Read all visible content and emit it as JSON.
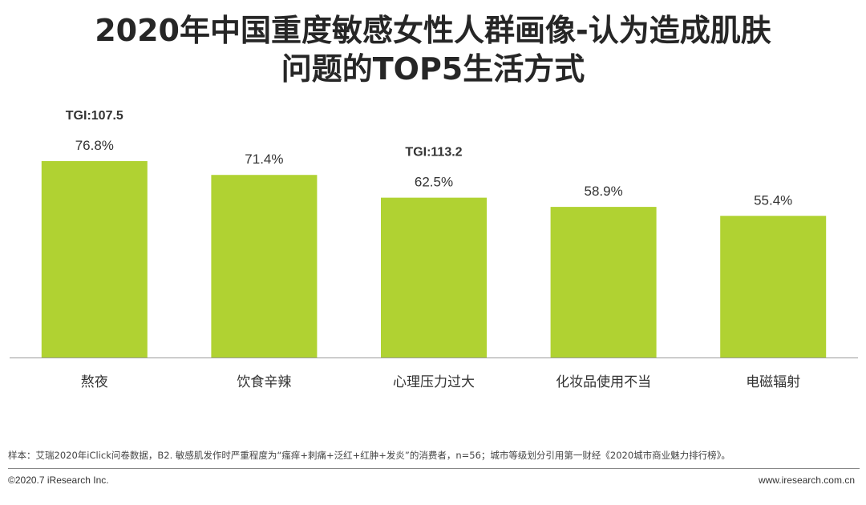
{
  "title": {
    "line1": "2020年中国重度敏感女性人群画像-认为造成肌肤",
    "line2": "问题的TOP5生活方式"
  },
  "chart_data": {
    "type": "bar",
    "categories": [
      "熬夜",
      "饮食辛辣",
      "心理压力过大",
      "化妆品使用不当",
      "电磁辐射"
    ],
    "values": [
      76.8,
      71.4,
      62.5,
      58.9,
      55.4
    ],
    "value_labels": [
      "76.8%",
      "71.4%",
      "62.5%",
      "58.9%",
      "55.4%"
    ],
    "annotations": [
      {
        "category": "熬夜",
        "text": "TGI:107.5"
      },
      {
        "category": "心理压力过大",
        "text": "TGI:113.2"
      }
    ],
    "bar_color": "#b0d232",
    "ylim": [
      0,
      100
    ],
    "grid": false,
    "xlabel": "",
    "ylabel": ""
  },
  "footer": {
    "note": "样本：艾瑞2020年iClick问卷数据，B2. 敏感肌发作时严重程度为“瘙痒+刺痛+泛红+红肿+发炎”的消费者，n=56；城市等级划分引用第一财经《2020城市商业魅力排行榜》。",
    "copyright": "©2020.7 iResearch Inc.",
    "website": "www.iresearch.com.cn"
  }
}
